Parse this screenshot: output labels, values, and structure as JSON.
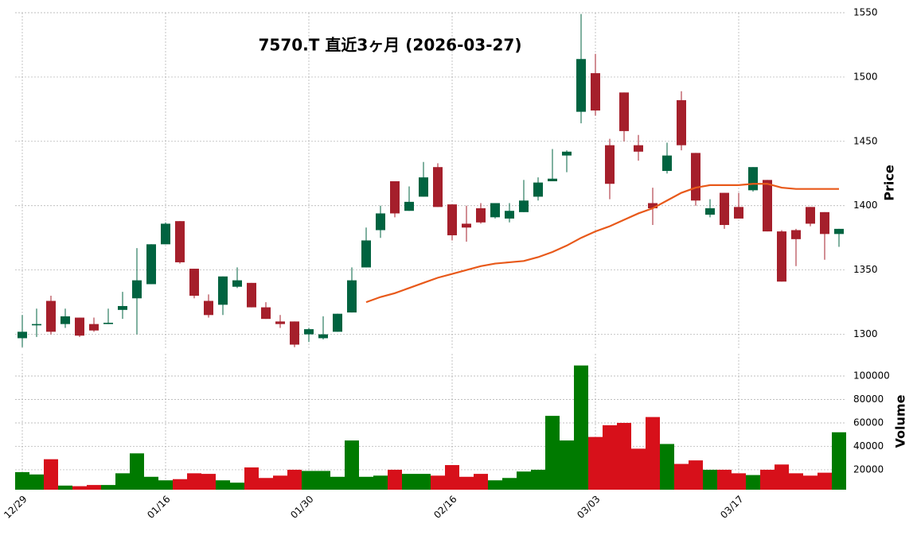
{
  "chart_data": {
    "type": "candlestick",
    "title": "7570.T  直近3ヶ月  (2026-03-27)",
    "categories": [
      "12/29",
      null,
      null,
      null,
      null,
      null,
      null,
      null,
      null,
      null,
      "01/16",
      null,
      null,
      null,
      null,
      null,
      null,
      null,
      null,
      null,
      "01/30",
      null,
      null,
      null,
      null,
      null,
      null,
      null,
      null,
      null,
      "02/16",
      null,
      null,
      null,
      null,
      null,
      null,
      null,
      null,
      null,
      "03/03",
      null,
      null,
      null,
      null,
      null,
      null,
      null,
      null,
      null,
      "03/17",
      null,
      null,
      null,
      null,
      null,
      null,
      null
    ],
    "open": [
      1297,
      1307,
      1326,
      1308,
      1313,
      1308,
      1308,
      1319,
      1328,
      1339,
      1370,
      1388,
      1351,
      1326,
      1323,
      1337,
      1340,
      1321,
      1310,
      1310,
      1300,
      1297,
      1302,
      1317,
      1352,
      1381,
      1419,
      1396,
      1407,
      1430,
      1401,
      1386,
      1398,
      1391,
      1390,
      1395,
      1407,
      1419,
      1439,
      1473,
      1503,
      1447,
      1488,
      1447,
      1402,
      1427,
      1482,
      1441,
      1393,
      1410,
      1399,
      1412,
      1420,
      1380,
      1381,
      1399,
      1395,
      1378
    ],
    "high": [
      1315,
      1320,
      1330,
      1320,
      1313,
      1313,
      1320,
      1333,
      1367,
      1370,
      1387,
      1388,
      1351,
      1331,
      1345,
      1352,
      1340,
      1325,
      1315,
      1310,
      1305,
      1314,
      1316,
      1352,
      1383,
      1400,
      1419,
      1415,
      1434,
      1433,
      1401,
      1400,
      1402,
      1402,
      1402,
      1420,
      1422,
      1444,
      1443,
      1549,
      1518,
      1452,
      1488,
      1455,
      1414,
      1449,
      1489,
      1441,
      1405,
      1410,
      1410,
      1430,
      1420,
      1381,
      1382,
      1399,
      1395,
      1382
    ],
    "low": [
      1290,
      1298,
      1300,
      1305,
      1298,
      1302,
      1308,
      1312,
      1300,
      1339,
      1370,
      1355,
      1328,
      1313,
      1315,
      1336,
      1321,
      1312,
      1305,
      1290,
      1294,
      1296,
      1302,
      1317,
      1352,
      1375,
      1391,
      1396,
      1407,
      1399,
      1373,
      1372,
      1386,
      1390,
      1387,
      1395,
      1404,
      1419,
      1426,
      1464,
      1470,
      1405,
      1450,
      1435,
      1385,
      1425,
      1443,
      1400,
      1391,
      1382,
      1390,
      1411,
      1380,
      1341,
      1353,
      1384,
      1358,
      1368
    ],
    "close": [
      1302,
      1308,
      1302,
      1314,
      1299,
      1303,
      1309,
      1322,
      1342,
      1370,
      1386,
      1356,
      1330,
      1315,
      1345,
      1342,
      1321,
      1312,
      1308,
      1292,
      1304,
      1300,
      1316,
      1342,
      1373,
      1394,
      1394,
      1403,
      1422,
      1399,
      1377,
      1383,
      1387,
      1402,
      1396,
      1404,
      1418,
      1421,
      1442,
      1514,
      1474,
      1417,
      1458,
      1442,
      1398,
      1439,
      1447,
      1404,
      1398,
      1385,
      1390,
      1430,
      1380,
      1341,
      1374,
      1386,
      1378,
      1382
    ],
    "up_color": "#006340",
    "down_color": "#a51f2b",
    "ylabel": "Price",
    "ylim": [
      1288,
      1550
    ],
    "yticks": [
      1300,
      1350,
      1400,
      1450,
      1500,
      1550
    ],
    "ma": {
      "color": "#e8591a",
      "values": [
        null,
        null,
        null,
        null,
        null,
        null,
        null,
        null,
        null,
        null,
        null,
        null,
        null,
        null,
        null,
        null,
        null,
        null,
        null,
        null,
        null,
        null,
        null,
        null,
        1325,
        1329,
        1332,
        1336,
        1340,
        1344,
        1347,
        1350,
        1353,
        1355,
        1356,
        1357,
        1360,
        1364,
        1369,
        1375,
        1380,
        1384,
        1389,
        1394,
        1398,
        1404,
        1410,
        1414,
        1416,
        1416,
        1416,
        1417,
        1417,
        1414,
        1413,
        1413,
        1413,
        1413
      ]
    },
    "volume": {
      "ylabel": "Volume",
      "up_color": "#007a00",
      "down_color": "#d7101a",
      "values": [
        18000,
        16000,
        29000,
        6500,
        6000,
        7000,
        7000,
        17000,
        34000,
        14000,
        11000,
        12000,
        17000,
        16500,
        11000,
        9000,
        22000,
        13000,
        15000,
        20000,
        19000,
        19000,
        14000,
        45000,
        14000,
        15000,
        20000,
        16500,
        16500,
        15000,
        24000,
        14000,
        16500,
        11000,
        13000,
        18500,
        20000,
        66000,
        45000,
        109000,
        48000,
        58000,
        60000,
        38000,
        65000,
        42000,
        25000,
        28000,
        20000,
        20000,
        17000,
        15500,
        20000,
        24500,
        17000,
        15000,
        17500,
        52000
      ],
      "ylim": [
        3000,
        119000
      ],
      "yticks": [
        20000,
        40000,
        60000,
        80000,
        100000
      ]
    },
    "grid": true
  }
}
